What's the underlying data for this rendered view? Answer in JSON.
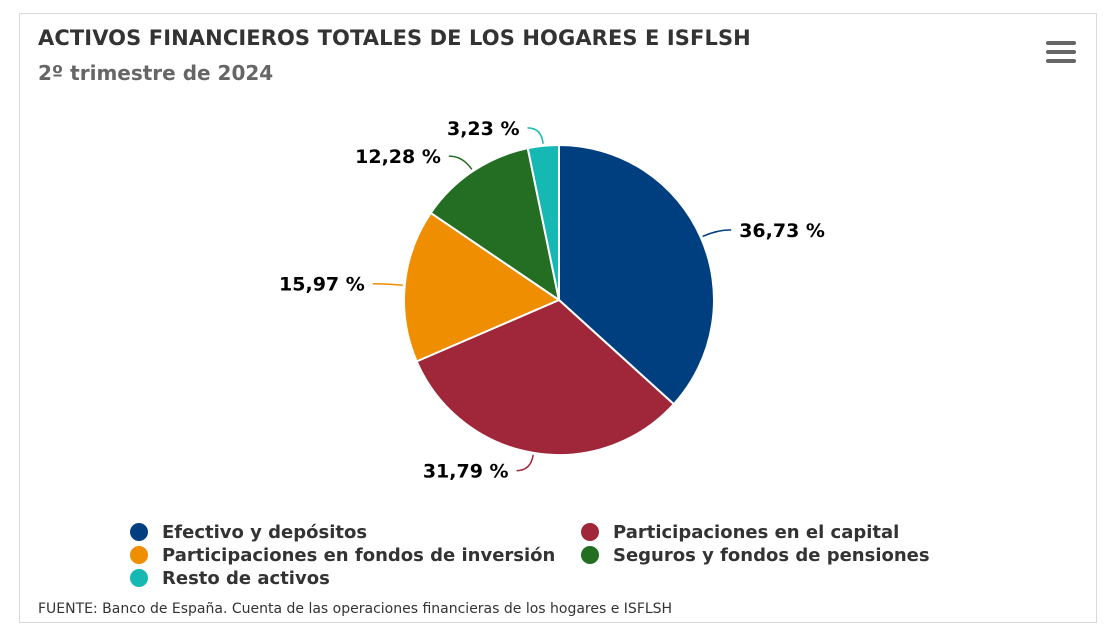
{
  "header": {
    "title": "ACTIVOS FINANCIEROS TOTALES DE LOS HOGARES E ISFLSH",
    "subtitle": "2º trimestre de 2024",
    "menu_icon": "hamburger-menu-icon"
  },
  "chart_data": {
    "type": "pie",
    "title": "ACTIVOS FINANCIEROS TOTALES DE LOS HOGARES E ISFLSH",
    "subtitle": "2º trimestre de 2024",
    "categories": [
      "Efectivo y depósitos",
      "Participaciones en el capital",
      "Participaciones en fondos de inversión",
      "Seguros y fondos de pensiones",
      "Resto de activos"
    ],
    "values": [
      36.73,
      31.79,
      15.97,
      12.28,
      3.23
    ],
    "labels": [
      "36,73 %",
      "31,79 %",
      "15,97 %",
      "12,28 %",
      "3,23 %"
    ],
    "colors": [
      "#003F7F",
      "#A0273A",
      "#EF8E00",
      "#246E24",
      "#16B8B4"
    ],
    "legend_position": "bottom",
    "start": "top",
    "direction": "clockwise"
  },
  "legend": [
    {
      "label": "Efectivo y depósitos",
      "color": "#003F7F"
    },
    {
      "label": "Participaciones en el capital",
      "color": "#A0273A"
    },
    {
      "label": "Participaciones en fondos de inversión",
      "color": "#EF8E00"
    },
    {
      "label": "Seguros y fondos de pensiones",
      "color": "#246E24"
    },
    {
      "label": "Resto de activos",
      "color": "#16B8B4"
    }
  ],
  "footer": {
    "source": "FUENTE: Banco de España. Cuenta de las operaciones financieras de los hogares e ISFLSH"
  }
}
